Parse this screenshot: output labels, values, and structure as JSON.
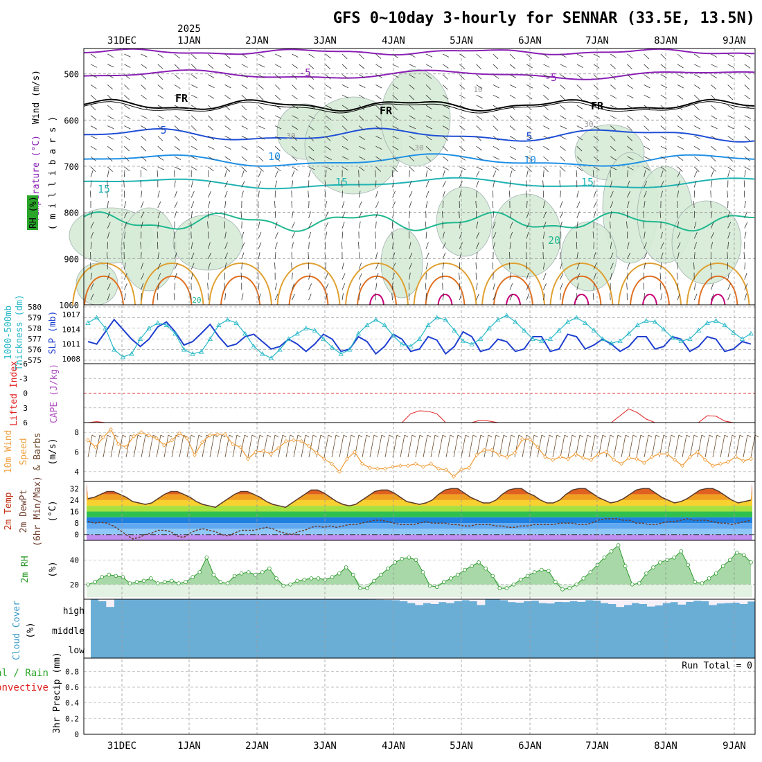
{
  "title": "GFS 0~10day 3-hourly for SENNAR (33.5E, 13.5N)",
  "year_label": "2025",
  "dates": [
    "31DEC",
    "1JAN",
    "2JAN",
    "3JAN",
    "4JAN",
    "5JAN",
    "6JAN",
    "7JAN",
    "8JAN",
    "9JAN"
  ],
  "run_total": "Run Total = 0",
  "colors": {
    "temp_purple": "#8a1fb5",
    "freezing": "#000000",
    "t5": "#1f4fd6",
    "t10": "#1e90e6",
    "t15": "#1fb3b3",
    "t20": "#1fb890",
    "warm_orange": "#e0a030",
    "hot_orange": "#e07020",
    "magenta": "#c8007a",
    "rh_fill": "#d6ecd6",
    "slp_blue": "#1f3fd0",
    "thick_cyan": "#27b8c8",
    "li_red": "#e02020",
    "wind_orange": "#f0a040",
    "rh2m_green": "#2a9a2a",
    "cloud_blue": "#6aaed6"
  },
  "panels": {
    "upper": {
      "ylabels": [
        "Wind (m/s)",
        "Temperature (°C)",
        "RH (%)",
        "( m i l l i b a r s )"
      ],
      "ticks": [
        "500",
        "600",
        "700",
        "800",
        "900",
        "1000"
      ],
      "contour_labels": [
        "-5",
        "-5",
        "FR",
        "FR",
        "FR",
        "5",
        "5",
        "10",
        "10",
        "15",
        "15",
        "15",
        "20",
        "20",
        "10",
        "30",
        "30",
        "30"
      ]
    },
    "slp": {
      "ylabels": [
        "1000-500mb",
        "Thickness (dm)",
        "SLP (mb)"
      ],
      "thick_ticks": [
        "580",
        "579",
        "578",
        "577",
        "576",
        "575"
      ],
      "slp_ticks": [
        "1017",
        "1014",
        "1011",
        "1008"
      ]
    },
    "li": {
      "ylabels": [
        "Lifted Index",
        "CAPE (J/kg)"
      ],
      "ticks": [
        "-6",
        "-3",
        "0",
        "3",
        "6"
      ]
    },
    "wind": {
      "ylabels": [
        "10m Wind",
        "Speed",
        "& Barbs",
        "(m/s)"
      ],
      "ticks": [
        "8",
        "6",
        "4"
      ]
    },
    "temp": {
      "ylabels": [
        "2m Temp",
        "2m DewPt",
        "(6hr Min/Max)",
        "(°C)"
      ],
      "ticks": [
        "32",
        "24",
        "16",
        "8",
        "0"
      ]
    },
    "rh": {
      "ylabels": [
        "2m RH",
        "(%)"
      ],
      "ticks": [
        "40",
        "20"
      ]
    },
    "cloud": {
      "ylabels": [
        "Cloud Cover",
        "(%)"
      ],
      "levels": [
        "high",
        "middle",
        "low"
      ]
    },
    "precip": {
      "ylabels": [
        "Total / Rain",
        "Convective",
        "3hr Precip (mm)"
      ],
      "ticks": [
        "0.8",
        "0.6",
        "0.4",
        "0.2",
        "0"
      ]
    }
  },
  "chart_data": [
    {
      "type": "line",
      "title": "1000-500mb Thickness (dm) / SLP (mb)",
      "series": [
        {
          "name": "SLP (mb)",
          "values": [
            1011.5,
            1011,
            1013.5,
            1016,
            1014,
            1012,
            1010.5,
            1012,
            1014.5,
            1015.5,
            1013.5,
            1010.8,
            1011.5,
            1013.2,
            1015,
            1012.5,
            1010.5,
            1011,
            1012.5,
            1013,
            1011.5,
            1010,
            1010.5,
            1012,
            1011,
            1009.5,
            1011,
            1013,
            1012,
            1009.5,
            1010,
            1012.5,
            1011.5,
            1009,
            1010.5,
            1013,
            1012,
            1009.5,
            1010,
            1012.5,
            1011.8,
            1009,
            1010.5,
            1013.5,
            1012.5,
            1009.5,
            1010,
            1012,
            1011.5,
            1009.5,
            1010,
            1012.5,
            1012.5,
            1009.5,
            1010,
            1013,
            1012.5,
            1010,
            1010.8,
            1012,
            1011,
            1009.5,
            1010.5,
            1012.5,
            1012.5,
            1010,
            1010.5,
            1012.5,
            1012,
            1009.5,
            1010.5,
            1012.5,
            1012,
            1009.5,
            1010,
            1011.5,
            1011
          ]
        },
        {
          "name": "1000-500mb Thickness (dm)",
          "values": [
            578.5,
            579,
            578,
            576,
            575.3,
            575.6,
            577,
            578,
            578.5,
            578.3,
            577.5,
            576,
            575.6,
            575.8,
            577,
            578.3,
            578.8,
            578.5,
            577.5,
            576.3,
            575.6,
            575.2,
            576,
            577,
            577.5,
            578,
            577.8,
            577,
            576.2,
            575.6,
            576,
            577.5,
            578.3,
            578.8,
            578.3,
            577.3,
            576.5,
            576.3,
            577,
            578.3,
            579,
            578.8,
            577.8,
            576.8,
            576.5,
            577,
            578,
            578.8,
            579.2,
            578.6,
            577.8,
            577,
            576.8,
            577,
            577.8,
            578.6,
            579,
            578.5,
            577.8,
            577,
            576.6,
            576.8,
            577.5,
            578.3,
            578.7,
            578.6,
            577.9,
            577.1,
            576.8,
            577,
            577.8,
            578.5,
            578.7,
            578.3,
            577.6,
            577,
            577.5
          ]
        }
      ],
      "ylim_thickness": [
        574.5,
        580
      ],
      "ylim_slp": [
        1007,
        1019
      ]
    },
    {
      "type": "line",
      "title": "Lifted Index / CAPE (J/kg)",
      "series": [
        {
          "name": "Lifted Index",
          "values": [
            6,
            5.8,
            6,
            6,
            6,
            6,
            6,
            6,
            6,
            6,
            6,
            6,
            6,
            6,
            6,
            6,
            6,
            6,
            6,
            6,
            6,
            6,
            6,
            6,
            6,
            6,
            6,
            6,
            6,
            6,
            6,
            6,
            6,
            6,
            6,
            6,
            6,
            4.2,
            3.6,
            3.7,
            4.2,
            6,
            6,
            6,
            6,
            5.5,
            5.7,
            6,
            6,
            6,
            6,
            6,
            6,
            6,
            6,
            6,
            6,
            6,
            6,
            6,
            6,
            4.6,
            3.2,
            4,
            5.3,
            6,
            6,
            6,
            6,
            6,
            6,
            4.6,
            4.7,
            5.7,
            6,
            6,
            6
          ]
        }
      ],
      "ylim": [
        -6,
        6
      ]
    },
    {
      "type": "line",
      "title": "10m Wind Speed & Barbs (m/s)",
      "series": [
        {
          "name": "10m Wind Speed",
          "values": [
            7.2,
            6.5,
            7.5,
            8.3,
            6.8,
            6.5,
            7.6,
            8,
            7.7,
            7.4,
            6.7,
            7.2,
            7.9,
            7.4,
            5.7,
            7,
            7.7,
            7.8,
            7.8,
            6.8,
            6.5,
            5.3,
            6,
            6.1,
            5.8,
            6.4,
            7.1,
            7.2,
            7.1,
            6.6,
            5.9,
            5.3,
            4.8,
            4,
            5.3,
            6,
            4.8,
            4.4,
            4.3,
            4.3,
            4.5,
            4.6,
            4.6,
            4.8,
            4.5,
            4.8,
            4.3,
            4.2,
            3.5,
            4.2,
            4.4,
            5.7,
            6.2,
            6.2,
            5.7,
            5.5,
            5.9,
            7.3,
            7.3,
            6.5,
            5.5,
            5.2,
            5.5,
            5.3,
            5.8,
            5.4,
            5.2,
            5.8,
            6,
            5.2,
            4.8,
            5.4,
            5.3,
            4.9,
            5.5,
            5.8,
            5.8,
            5.2,
            4.6,
            5.5,
            6,
            5.2,
            4.6,
            4.8,
            5,
            5.5,
            5.1,
            5.3
          ]
        }
      ],
      "ylim": [
        3,
        9
      ]
    },
    {
      "type": "area",
      "title": "2m Temp / 2m DewPt (6hr Min/Max) (°C)",
      "series": [
        {
          "name": "2m Temp",
          "values": [
            25,
            26,
            28,
            30,
            30,
            28,
            26,
            23,
            22,
            21,
            22,
            25,
            28,
            30,
            30,
            28,
            26,
            23,
            21,
            20,
            19,
            22,
            25,
            28,
            30,
            30,
            28,
            26,
            23,
            21,
            20,
            19,
            22,
            25,
            28,
            31,
            31,
            29,
            26,
            23,
            21,
            20,
            21,
            24,
            27,
            30,
            31,
            31,
            29,
            26,
            23,
            22,
            21,
            22,
            24,
            28,
            31,
            32,
            32,
            29,
            26,
            24,
            22,
            22,
            24,
            28,
            31,
            32,
            32,
            29,
            27,
            24,
            22,
            22,
            24,
            28,
            31,
            32,
            32,
            29,
            26,
            24,
            22,
            23,
            25,
            28,
            31,
            32,
            32,
            29,
            26,
            24,
            22,
            23,
            25,
            28,
            31,
            32,
            32,
            30,
            27,
            24,
            22,
            23,
            24
          ]
        },
        {
          "name": "2m DewPt",
          "values": [
            9,
            8,
            8.5,
            8,
            6,
            3,
            0,
            -3,
            -2,
            0,
            1,
            3,
            3,
            2,
            -1,
            -2,
            1,
            3,
            4,
            3,
            2,
            0,
            -1,
            1,
            3,
            3,
            3,
            4,
            5,
            4,
            2,
            1,
            0,
            2,
            3,
            5,
            6,
            5,
            6,
            5,
            6,
            7,
            7,
            8,
            9,
            10,
            10,
            9,
            8,
            7,
            7,
            7,
            8,
            9,
            8,
            8,
            8,
            7,
            7,
            6,
            6,
            7,
            7,
            7,
            6,
            6,
            5,
            5,
            6,
            6,
            7,
            7,
            7,
            7,
            8,
            8,
            8,
            7,
            7,
            8,
            10,
            11,
            11,
            11,
            10,
            10,
            8,
            8,
            7,
            7,
            8,
            9,
            9,
            10,
            11,
            10,
            10,
            10,
            9,
            8,
            8,
            7,
            8,
            9,
            10
          ]
        }
      ],
      "ylim": [
        -4,
        36
      ]
    },
    {
      "type": "area",
      "title": "2m RH (%)",
      "series": [
        {
          "name": "2m RH",
          "values": [
            20,
            22,
            26,
            28,
            27,
            26,
            21,
            22,
            23,
            25,
            21,
            22,
            23,
            21,
            22,
            26,
            30,
            42,
            28,
            22,
            21,
            27,
            29,
            30,
            28,
            30,
            33,
            25,
            19,
            20,
            23,
            24,
            25,
            25,
            24,
            26,
            29,
            34,
            28,
            17,
            17,
            23,
            28,
            33,
            38,
            41,
            42,
            40,
            30,
            19,
            18,
            22,
            25,
            28,
            32,
            35,
            38,
            33,
            27,
            17,
            17,
            20,
            24,
            27,
            30,
            32,
            31,
            22,
            16,
            17,
            20,
            25,
            30,
            36,
            42,
            47,
            52,
            35,
            20,
            21,
            29,
            34,
            38,
            40,
            42,
            47,
            36,
            22,
            21,
            25,
            29,
            35,
            40,
            46,
            44,
            38
          ]
        }
      ],
      "ylim": [
        8,
        56
      ]
    },
    {
      "type": "bar",
      "title": "Cloud Cover (%)",
      "series": [
        {
          "name": "high",
          "values": [
            100,
            90,
            60,
            100,
            100,
            100,
            100,
            100,
            100,
            100,
            100,
            100,
            100,
            100,
            100,
            100,
            100,
            100,
            100,
            100,
            100,
            100,
            100,
            100,
            100,
            100,
            100,
            100,
            100,
            100,
            100,
            100,
            100,
            100,
            100,
            100,
            98,
            97,
            96,
            95,
            90,
            80,
            70,
            80,
            75,
            85,
            80,
            90,
            95,
            90,
            70,
            100,
            100,
            95,
            85,
            82,
            90,
            92,
            80,
            78,
            86,
            85,
            90,
            86,
            95,
            93,
            80,
            75,
            60,
            70,
            80,
            75,
            62,
            68,
            80,
            85,
            72,
            86,
            92,
            90,
            70,
            78,
            80,
            82,
            75,
            88
          ]
        },
        {
          "name": "middle",
          "values": [
            100
          ]
        },
        {
          "name": "low",
          "values": [
            100
          ]
        }
      ],
      "ylim": [
        0,
        100
      ]
    },
    {
      "type": "bar",
      "title": "3hr Precip (mm)",
      "series": [
        {
          "name": "Total / Rain",
          "values": [
            0
          ]
        },
        {
          "name": "Convective",
          "values": [
            0
          ]
        }
      ],
      "ylim": [
        0,
        0.9
      ]
    }
  ]
}
